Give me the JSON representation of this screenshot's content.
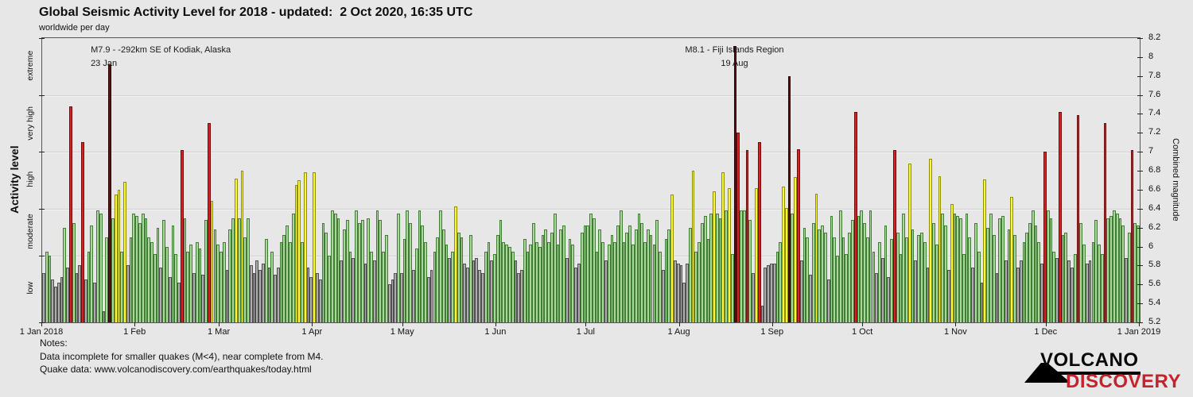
{
  "title": "Global Seismic Activity Level for 2018 - updated:  2 Oct 2020, 16:35 UTC",
  "subtitle": "worldwide per day",
  "notes": {
    "heading": "Notes:",
    "line1": "Data incomplete for smaller quakes (M<4), near complete from M4.",
    "line2": "Quake data: www.volcanodiscovery.com/earthquakes/today.html"
  },
  "logo": {
    "line1": "VOLCANO",
    "line2": "DISCOVERY",
    "accent_color": "#c4232e"
  },
  "chart_data": {
    "type": "bar",
    "title": "Global Seismic Activity Level for 2018",
    "subtitle": "worldwide per day",
    "y_axis_right": {
      "title": "Combined magnitude",
      "min": 5.2,
      "max": 8.2,
      "ticks": [
        {
          "v": 8.2,
          "label": "8.2"
        },
        {
          "v": 8.0,
          "label": "8"
        },
        {
          "v": 7.8,
          "label": "7.8"
        },
        {
          "v": 7.6,
          "label": "7.6"
        },
        {
          "v": 7.4,
          "label": "7.4"
        },
        {
          "v": 7.2,
          "label": "7.2"
        },
        {
          "v": 7.0,
          "label": "7"
        },
        {
          "v": 6.8,
          "label": "6.8"
        },
        {
          "v": 6.6,
          "label": "6.6"
        },
        {
          "v": 6.4,
          "label": "6.4"
        },
        {
          "v": 6.2,
          "label": "6.2"
        },
        {
          "v": 6.0,
          "label": "6"
        },
        {
          "v": 5.8,
          "label": "5.8"
        },
        {
          "v": 5.6,
          "label": "5.6"
        },
        {
          "v": 5.4,
          "label": "5.4"
        },
        {
          "v": 5.2,
          "label": "5.2"
        }
      ]
    },
    "y_axis_left": {
      "title": "Activity level",
      "bands": [
        {
          "name": "low",
          "from": 5.2,
          "to": 5.9,
          "fill": "#adadad",
          "stroke": "#4f4f4f"
        },
        {
          "name": "moderate",
          "from": 5.9,
          "to": 6.4,
          "fill": "#a9d89a",
          "stroke": "#3f7d35"
        },
        {
          "name": "high",
          "from": 6.4,
          "to": 7.0,
          "fill": "#f9f53c",
          "stroke": "#8f8f00"
        },
        {
          "name": "very high",
          "from": 7.0,
          "to": 7.6,
          "fill": "#d92121",
          "stroke": "#6b0d0d"
        },
        {
          "name": "extreme",
          "from": 7.6,
          "to": 8.2,
          "fill": "#571212",
          "stroke": "#260606"
        }
      ]
    },
    "gridlines": [
      5.9,
      6.4,
      7.0,
      7.6
    ],
    "x_axis": {
      "ticks": [
        {
          "label": "1 Jan 2018",
          "day": 0
        },
        {
          "label": "1 Feb",
          "day": 31
        },
        {
          "label": "1 Mar",
          "day": 59
        },
        {
          "label": "1 Apr",
          "day": 90
        },
        {
          "label": "1 May",
          "day": 120
        },
        {
          "label": "1 Jun",
          "day": 151
        },
        {
          "label": "1 Jul",
          "day": 181
        },
        {
          "label": "1 Aug",
          "day": 212
        },
        {
          "label": "1 Sep",
          "day": 243
        },
        {
          "label": "1 Oct",
          "day": 273
        },
        {
          "label": "1 Nov",
          "day": 304
        },
        {
          "label": "1 Dec",
          "day": 334
        },
        {
          "label": "1 Jan 2019",
          "day": 365
        }
      ]
    },
    "annotations": [
      {
        "line1": "M7.9 - -292km SE of Kodiak, Alaska",
        "line2": "23 Jan",
        "day": 22,
        "align": "left"
      },
      {
        "line1": "M8.1 - Fiji Islands Region",
        "line2": "19 Aug",
        "day": 230,
        "align": "center"
      }
    ],
    "series": [
      {
        "name": "Daily combined magnitude, worldwide",
        "start": "1 Jan 2018",
        "days": 365,
        "values": [
          5.72,
          5.95,
          5.9,
          5.65,
          5.58,
          5.62,
          5.68,
          6.2,
          5.78,
          7.48,
          6.25,
          5.72,
          5.8,
          7.1,
          5.65,
          5.95,
          6.22,
          5.62,
          6.38,
          6.35,
          5.32,
          6.1,
          7.92,
          6.3,
          6.55,
          6.6,
          5.95,
          6.68,
          5.8,
          6.1,
          6.35,
          6.32,
          6.25,
          6.35,
          6.3,
          6.1,
          6.05,
          5.92,
          6.2,
          5.78,
          6.28,
          6.0,
          5.68,
          6.22,
          5.92,
          5.62,
          7.02,
          6.3,
          5.95,
          6.02,
          5.72,
          6.05,
          5.98,
          5.7,
          6.28,
          7.3,
          6.48,
          6.18,
          6.02,
          5.95,
          6.05,
          5.75,
          6.18,
          6.3,
          6.72,
          6.3,
          6.8,
          6.1,
          6.3,
          5.8,
          5.72,
          5.85,
          5.75,
          5.82,
          6.08,
          5.78,
          5.95,
          5.7,
          5.78,
          6.05,
          6.12,
          6.22,
          6.05,
          6.35,
          6.65,
          6.7,
          6.05,
          6.78,
          5.78,
          5.68,
          6.78,
          5.72,
          5.65,
          6.25,
          6.15,
          5.9,
          6.38,
          6.35,
          6.3,
          5.85,
          6.18,
          6.28,
          5.95,
          5.88,
          6.38,
          6.25,
          6.28,
          5.82,
          6.3,
          5.95,
          5.85,
          6.38,
          6.28,
          5.95,
          6.12,
          5.6,
          5.65,
          5.72,
          6.35,
          5.72,
          6.08,
          6.38,
          6.25,
          5.75,
          5.98,
          6.38,
          6.22,
          6.05,
          5.68,
          5.75,
          5.95,
          6.1,
          6.38,
          6.18,
          6.02,
          5.88,
          5.95,
          6.42,
          6.15,
          6.1,
          5.82,
          5.78,
          6.12,
          5.85,
          5.88,
          5.75,
          5.72,
          5.95,
          6.05,
          5.85,
          5.92,
          6.12,
          6.28,
          6.05,
          6.02,
          6.0,
          5.95,
          5.85,
          5.72,
          5.75,
          6.08,
          5.95,
          6.02,
          6.25,
          6.05,
          6.0,
          6.12,
          6.18,
          6.05,
          6.15,
          6.35,
          6.02,
          6.18,
          6.22,
          5.88,
          6.08,
          6.02,
          5.78,
          5.82,
          6.15,
          6.22,
          6.22,
          6.35,
          6.3,
          5.95,
          6.18,
          6.05,
          5.85,
          6.02,
          6.12,
          6.05,
          6.22,
          6.38,
          6.05,
          6.15,
          6.22,
          6.02,
          6.18,
          6.35,
          6.25,
          6.05,
          6.18,
          6.12,
          6.02,
          6.28,
          5.95,
          5.75,
          6.08,
          6.18,
          6.55,
          5.85,
          5.82,
          5.8,
          5.62,
          5.82,
          6.2,
          6.8,
          5.95,
          6.05,
          6.25,
          6.32,
          6.08,
          6.35,
          6.58,
          6.35,
          6.3,
          6.78,
          6.38,
          6.62,
          5.92,
          8.12,
          7.2,
          6.38,
          6.38,
          7.02,
          6.28,
          5.72,
          6.62,
          7.1,
          5.38,
          5.78,
          5.8,
          5.82,
          5.82,
          5.95,
          6.05,
          6.63,
          6.41,
          7.8,
          6.35,
          6.73,
          7.03,
          5.85,
          6.2,
          6.1,
          5.7,
          6.25,
          6.56,
          6.18,
          6.22,
          6.15,
          5.65,
          6.32,
          6.1,
          5.9,
          6.38,
          6.1,
          5.92,
          6.15,
          6.28,
          7.42,
          6.32,
          6.38,
          6.25,
          6.1,
          6.38,
          5.95,
          5.72,
          6.05,
          5.88,
          6.22,
          5.68,
          6.08,
          7.02,
          6.15,
          5.92,
          6.35,
          6.1,
          6.88,
          6.18,
          5.85,
          6.12,
          6.15,
          6.05,
          5.78,
          6.93,
          6.25,
          6.02,
          6.74,
          6.35,
          6.22,
          5.75,
          6.45,
          6.35,
          6.32,
          6.3,
          5.92,
          6.35,
          6.1,
          5.78,
          6.25,
          5.95,
          5.62,
          6.71,
          6.2,
          6.35,
          6.12,
          5.72,
          6.3,
          6.32,
          5.85,
          6.18,
          6.52,
          6.12,
          5.78,
          5.85,
          6.05,
          6.15,
          6.25,
          6.38,
          6.22,
          6.05,
          5.82,
          7.0,
          6.38,
          6.3,
          5.95,
          5.88,
          7.42,
          6.12,
          6.15,
          5.85,
          5.78,
          5.92,
          7.39,
          6.25,
          6.02,
          5.82,
          5.85,
          6.05,
          6.28,
          6.02,
          5.92,
          7.3,
          6.3,
          6.32,
          6.38,
          6.35,
          6.3,
          6.22,
          5.88,
          6.15,
          7.02,
          6.25,
          6.22
        ]
      }
    ]
  }
}
